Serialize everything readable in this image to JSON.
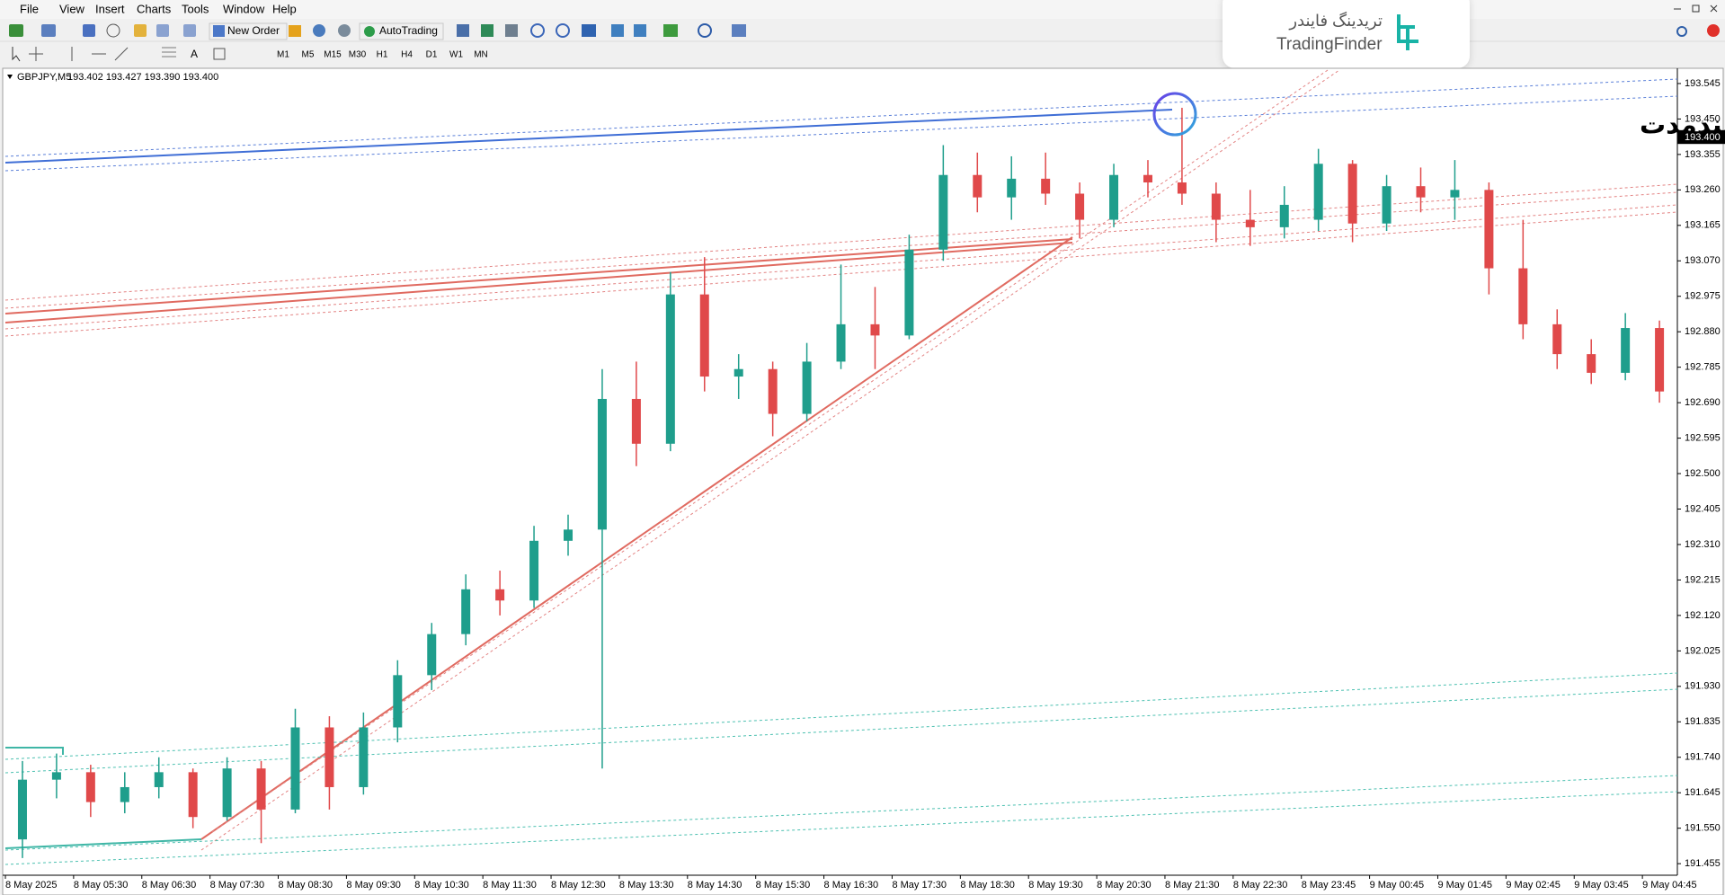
{
  "menu": [
    "File",
    "View",
    "Insert",
    "Charts",
    "Tools",
    "Window",
    "Help"
  ],
  "toolbar": {
    "new_order": "New Order",
    "autotrading": "AutoTrading",
    "timeframes": [
      "M1",
      "M5",
      "M15",
      "M30",
      "H1",
      "H4",
      "D1",
      "W1",
      "MN"
    ]
  },
  "logo": {
    "fa": "تریدینگ فایندر",
    "en": "TradingFinder"
  },
  "chart_data": {
    "type": "candlestick",
    "symbol": "GBPJPY,M5",
    "quote": "193.402 193.427 193.390 193.400",
    "annotation": "ناحیه بازگشت روند از خط بلندمدت",
    "categories": [
      "8 May 2025",
      null,
      "8 May 05:30",
      null,
      "8 May 06:30",
      null,
      "8 May 07:30",
      null,
      "8 May 08:30",
      null,
      "8 May 09:30",
      null,
      "8 May 10:30",
      null,
      "8 May 11:30",
      null,
      "8 May 12:30",
      null,
      "8 May 13:30",
      null,
      "8 May 14:30",
      null,
      "8 May 15:30",
      null,
      "8 May 16:30",
      null,
      "8 May 17:30",
      null,
      "8 May 18:30",
      null,
      "8 May 19:30",
      null,
      "8 May 20:30",
      null,
      "8 May 21:30",
      null,
      "8 May 22:30",
      null,
      "8 May 23:45",
      null,
      "9 May 00:45",
      null,
      "9 May 01:45",
      null,
      "9 May 02:45",
      null,
      "9 May 03:45",
      null,
      "9 May 04:45"
    ],
    "open": [
      191.52,
      191.68,
      191.7,
      191.62,
      191.66,
      191.7,
      191.58,
      191.71,
      191.6,
      191.82,
      191.66,
      191.82,
      191.96,
      192.07,
      192.19,
      192.16,
      192.32,
      192.35,
      192.7,
      192.58,
      192.98,
      192.76,
      192.78,
      192.66,
      192.8,
      192.9,
      192.87,
      193.1,
      193.3,
      193.24,
      193.29,
      193.25,
      193.18,
      193.3,
      193.28,
      193.25,
      193.18,
      193.16,
      193.18,
      193.33,
      193.17,
      193.27,
      193.24,
      193.26,
      193.05,
      192.9,
      192.82,
      192.77,
      192.89
    ],
    "high": [
      191.73,
      191.75,
      191.72,
      191.7,
      191.74,
      191.71,
      191.74,
      191.73,
      191.87,
      191.85,
      191.86,
      192.0,
      192.1,
      192.23,
      192.24,
      192.36,
      192.39,
      192.78,
      192.8,
      193.04,
      193.08,
      192.82,
      192.8,
      192.85,
      193.06,
      193.0,
      193.14,
      193.38,
      193.36,
      193.35,
      193.36,
      193.28,
      193.33,
      193.34,
      193.48,
      193.28,
      193.26,
      193.27,
      193.37,
      193.34,
      193.3,
      193.32,
      193.34,
      193.28,
      193.18,
      192.94,
      192.86,
      192.93,
      192.91
    ],
    "low": [
      191.47,
      191.63,
      191.58,
      191.59,
      191.63,
      191.55,
      191.57,
      191.51,
      191.59,
      191.6,
      191.64,
      191.78,
      191.92,
      192.04,
      192.12,
      192.14,
      192.28,
      191.71,
      192.52,
      192.56,
      192.72,
      192.7,
      192.6,
      192.64,
      192.78,
      192.78,
      192.86,
      193.07,
      193.2,
      193.18,
      193.22,
      193.13,
      193.16,
      193.24,
      193.22,
      193.12,
      193.11,
      193.13,
      193.15,
      193.12,
      193.15,
      193.2,
      193.18,
      192.98,
      192.86,
      192.78,
      192.74,
      192.75,
      192.69
    ],
    "close": [
      191.68,
      191.7,
      191.62,
      191.66,
      191.7,
      191.58,
      191.71,
      191.6,
      191.82,
      191.66,
      191.82,
      191.96,
      192.07,
      192.19,
      192.16,
      192.32,
      192.35,
      192.7,
      192.58,
      192.98,
      192.76,
      192.78,
      192.66,
      192.8,
      192.9,
      192.87,
      193.1,
      193.3,
      193.24,
      193.29,
      193.25,
      193.18,
      193.3,
      193.28,
      193.25,
      193.18,
      193.16,
      193.22,
      193.33,
      193.17,
      193.27,
      193.24,
      193.26,
      193.05,
      192.9,
      192.82,
      192.77,
      192.89,
      192.72
    ],
    "up_color": "#1f9e8c",
    "down_color": "#e0494a",
    "ylim": [
      191.424,
      193.581
    ],
    "yticks": [
      {
        "value": 193.545,
        "label": "193.545"
      },
      {
        "value": 193.45,
        "label": "193.450"
      },
      {
        "value": 193.355,
        "label": "193.355"
      },
      {
        "value": 193.26,
        "label": "193.260"
      },
      {
        "value": 193.165,
        "label": "193.165"
      },
      {
        "value": 193.07,
        "label": "193.070"
      },
      {
        "value": 192.975,
        "label": "192.975"
      },
      {
        "value": 192.88,
        "label": "192.880"
      },
      {
        "value": 192.785,
        "label": "192.785"
      },
      {
        "value": 192.69,
        "label": "192.690"
      },
      {
        "value": 192.595,
        "label": "192.595"
      },
      {
        "value": 192.5,
        "label": "192.500"
      },
      {
        "value": 192.405,
        "label": "192.405"
      },
      {
        "value": 192.31,
        "label": "192.310"
      },
      {
        "value": 192.215,
        "label": "192.215"
      },
      {
        "value": 192.12,
        "label": "192.120"
      },
      {
        "value": 192.025,
        "label": "192.025"
      },
      {
        "value": 191.93,
        "label": "191.930"
      },
      {
        "value": 191.835,
        "label": "191.835"
      },
      {
        "value": 191.74,
        "label": "191.740"
      },
      {
        "value": 191.645,
        "label": "191.645"
      },
      {
        "value": 191.55,
        "label": "191.550"
      },
      {
        "value": 191.455,
        "label": "191.455"
      }
    ],
    "current_price": {
      "value": 193.4,
      "label": "193.400"
    }
  }
}
